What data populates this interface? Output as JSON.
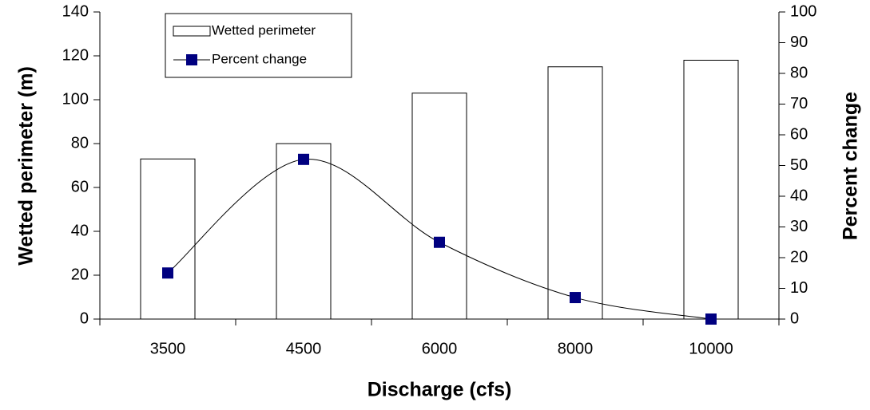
{
  "chart_data": {
    "type": "bar",
    "categories": [
      "3500",
      "4500",
      "6000",
      "8000",
      "10000"
    ],
    "series": [
      {
        "name": "Wetted perimeter",
        "type": "bar",
        "color": "#ffffff",
        "values": [
          73,
          80,
          103,
          115,
          118
        ]
      },
      {
        "name": "Percent change",
        "type": "line",
        "axis": "y2",
        "color": "#000080",
        "values": [
          15,
          52,
          25,
          7,
          0
        ]
      }
    ],
    "xlabel": "Discharge (cfs)",
    "ylabel": "Wetted perimeter (m)",
    "y2label": "Percent change",
    "ylim": [
      0,
      140
    ],
    "yticks": [
      0,
      20,
      40,
      60,
      80,
      100,
      120,
      140
    ],
    "y2lim": [
      0,
      100
    ],
    "y2ticks": [
      0,
      10,
      20,
      30,
      40,
      50,
      60,
      70,
      80,
      90,
      100
    ],
    "legend": "top-left"
  }
}
